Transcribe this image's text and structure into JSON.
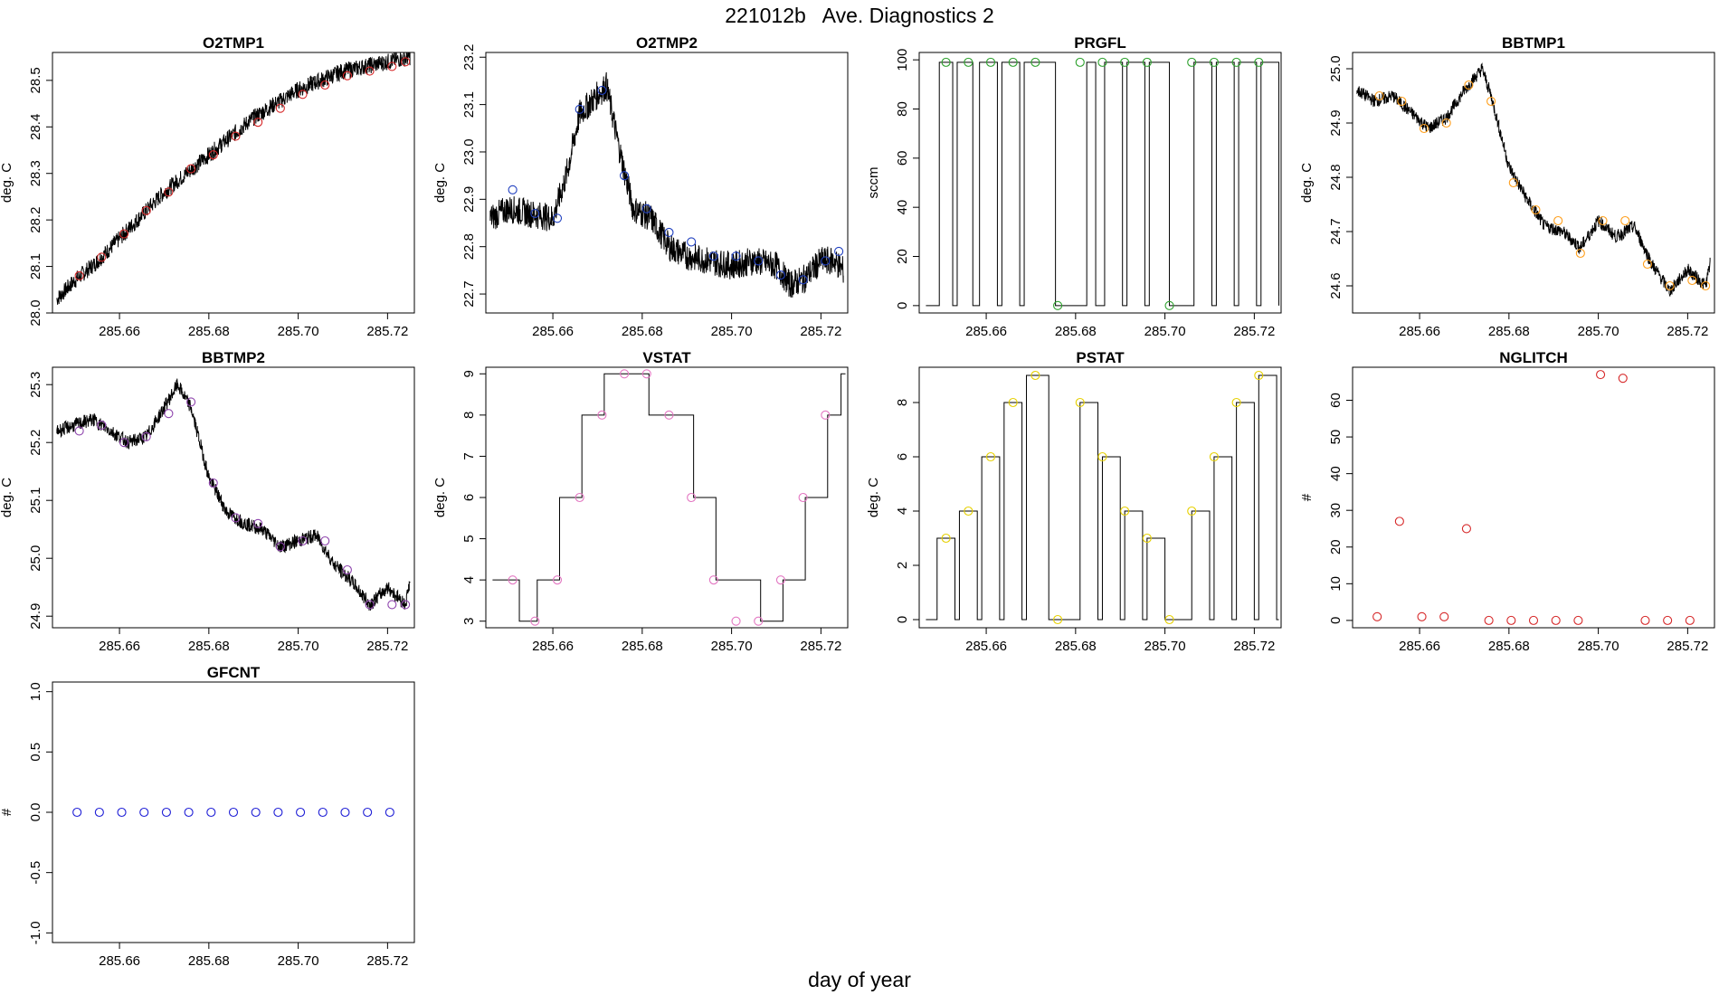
{
  "figure": {
    "title": "221012b   Ave. Diagnostics 2",
    "xlabel": "day of year"
  },
  "chart_data": [
    {
      "type": "line",
      "title": "O2TMP1",
      "ylabel": "deg. C",
      "xlim": [
        285.645,
        285.726
      ],
      "ylim": [
        28.0,
        28.56
      ],
      "xticks": [
        285.66,
        285.68,
        285.7,
        285.72
      ],
      "xtick_labels": [
        "285.66",
        "285.68",
        "285.70",
        "285.72"
      ],
      "yticks": [
        28.0,
        28.1,
        28.2,
        28.3,
        28.4,
        28.5
      ],
      "ytick_labels": [
        "28.0",
        "28.1",
        "28.2",
        "28.3",
        "28.4",
        "28.5"
      ],
      "line_x": [
        285.646,
        285.65,
        285.655,
        285.66,
        285.665,
        285.67,
        285.675,
        285.68,
        285.685,
        285.69,
        285.695,
        285.7,
        285.705,
        285.71,
        285.715,
        285.72,
        285.725
      ],
      "line_y": [
        28.03,
        28.07,
        28.11,
        28.16,
        28.21,
        28.26,
        28.3,
        28.34,
        28.38,
        28.42,
        28.45,
        28.48,
        28.5,
        28.52,
        28.53,
        28.54,
        28.55
      ],
      "line_noise": 0.018,
      "marker_color": "#d62728",
      "marker_x": [
        285.651,
        285.656,
        285.661,
        285.666,
        285.671,
        285.676,
        285.681,
        285.686,
        285.691,
        285.696,
        285.701,
        285.706,
        285.711,
        285.716,
        285.721,
        285.724
      ],
      "marker_y": [
        28.08,
        28.12,
        28.17,
        28.22,
        28.26,
        28.31,
        28.34,
        28.38,
        28.41,
        28.44,
        28.47,
        28.49,
        28.51,
        28.52,
        28.53,
        28.54
      ]
    },
    {
      "type": "line",
      "title": "O2TMP2",
      "ylabel": "deg. C",
      "xlim": [
        285.645,
        285.726
      ],
      "ylim": [
        22.66,
        23.21
      ],
      "xticks": [
        285.66,
        285.68,
        285.7,
        285.72
      ],
      "xtick_labels": [
        "285.66",
        "285.68",
        "285.70",
        "285.72"
      ],
      "yticks": [
        22.7,
        22.8,
        22.9,
        23.0,
        23.1,
        23.2
      ],
      "ytick_labels": [
        "22.7",
        "22.8",
        "22.9",
        "23.0",
        "23.1",
        "23.2"
      ],
      "line_x": [
        285.646,
        285.65,
        285.655,
        285.66,
        285.663,
        285.666,
        285.67,
        285.672,
        285.675,
        285.678,
        285.682,
        285.686,
        285.69,
        285.695,
        285.7,
        285.705,
        285.71,
        285.713,
        285.716,
        285.72,
        285.723,
        285.725
      ],
      "line_y": [
        22.86,
        22.88,
        22.87,
        22.86,
        22.95,
        23.08,
        23.12,
        23.14,
        23.0,
        22.88,
        22.86,
        22.8,
        22.78,
        22.77,
        22.76,
        22.77,
        22.76,
        22.72,
        22.73,
        22.77,
        22.77,
        22.75
      ],
      "line_noise": 0.03,
      "marker_color": "#1f3fbf",
      "marker_x": [
        285.651,
        285.656,
        285.661,
        285.666,
        285.671,
        285.676,
        285.681,
        285.686,
        285.691,
        285.696,
        285.701,
        285.706,
        285.711,
        285.716,
        285.721,
        285.724
      ],
      "marker_y": [
        22.92,
        22.87,
        22.86,
        23.09,
        23.13,
        22.95,
        22.88,
        22.83,
        22.81,
        22.78,
        22.78,
        22.77,
        22.74,
        22.73,
        22.77,
        22.79
      ]
    },
    {
      "type": "line",
      "title": "PRGFL",
      "ylabel": "sccm",
      "xlim": [
        285.645,
        285.726
      ],
      "ylim": [
        -3,
        103
      ],
      "xticks": [
        285.66,
        285.68,
        285.7,
        285.72
      ],
      "xtick_labels": [
        "285.66",
        "285.68",
        "285.70",
        "285.72"
      ],
      "yticks": [
        0,
        20,
        40,
        60,
        80,
        100
      ],
      "ytick_labels": [
        "0",
        "20",
        "40",
        "60",
        "80",
        "100"
      ],
      "pulse_rises": [
        285.6495,
        285.6535,
        285.6585,
        285.6635,
        285.6685,
        285.6825,
        285.6865,
        285.6915,
        285.6965,
        285.7065,
        285.7115,
        285.7165,
        285.7215
      ],
      "pulse_falls": [
        285.6525,
        285.657,
        285.6625,
        285.6675,
        285.6755,
        285.6845,
        285.6905,
        285.6955,
        285.701,
        285.7105,
        285.7155,
        285.7205,
        285.7255
      ],
      "pulse_start": 285.6465,
      "pulse_end": 285.7255,
      "pulse_high": 99,
      "pulse_low": 0,
      "marker_color": "#2ca02c",
      "marker_x": [
        285.651,
        285.656,
        285.661,
        285.666,
        285.671,
        285.676,
        285.681,
        285.686,
        285.691,
        285.696,
        285.701,
        285.706,
        285.711,
        285.716,
        285.721
      ],
      "marker_y": [
        99,
        99,
        99,
        99,
        99,
        0,
        99,
        99,
        99,
        99,
        0,
        99,
        99,
        99,
        99
      ]
    },
    {
      "type": "line",
      "title": "BBTMP1",
      "ylabel": "deg. C",
      "xlim": [
        285.645,
        285.726
      ],
      "ylim": [
        24.55,
        25.03
      ],
      "xticks": [
        285.66,
        285.68,
        285.7,
        285.72
      ],
      "xtick_labels": [
        "285.66",
        "285.68",
        "285.70",
        "285.72"
      ],
      "yticks": [
        24.6,
        24.7,
        24.8,
        24.9,
        25.0
      ],
      "ytick_labels": [
        "24.6",
        "24.7",
        "24.8",
        "24.9",
        "25.0"
      ],
      "line_x": [
        285.646,
        285.65,
        285.654,
        285.658,
        285.662,
        285.666,
        285.67,
        285.674,
        285.676,
        285.68,
        285.684,
        285.688,
        285.692,
        285.696,
        285.7,
        285.704,
        285.708,
        285.712,
        285.716,
        285.72,
        285.724,
        285.725
      ],
      "line_y": [
        24.96,
        24.94,
        24.95,
        24.92,
        24.89,
        24.91,
        24.96,
        25.0,
        24.95,
        24.82,
        24.76,
        24.71,
        24.7,
        24.67,
        24.72,
        24.69,
        24.71,
        24.64,
        24.59,
        24.63,
        24.6,
        24.64
      ],
      "line_noise": 0.012,
      "marker_color": "#ff9f1c",
      "marker_x": [
        285.651,
        285.656,
        285.661,
        285.666,
        285.671,
        285.676,
        285.681,
        285.686,
        285.691,
        285.696,
        285.701,
        285.706,
        285.711,
        285.716,
        285.721,
        285.724
      ],
      "marker_y": [
        24.95,
        24.94,
        24.89,
        24.9,
        24.97,
        24.94,
        24.79,
        24.74,
        24.72,
        24.66,
        24.72,
        24.72,
        24.64,
        24.6,
        24.61,
        24.6
      ]
    },
    {
      "type": "line",
      "title": "BBTMP2",
      "ylabel": "deg. C",
      "xlim": [
        285.645,
        285.726
      ],
      "ylim": [
        24.88,
        25.33
      ],
      "xticks": [
        285.66,
        285.68,
        285.7,
        285.72
      ],
      "xtick_labels": [
        "285.66",
        "285.68",
        "285.70",
        "285.72"
      ],
      "yticks": [
        24.9,
        25.0,
        25.1,
        25.2,
        25.3
      ],
      "ytick_labels": [
        "24.9",
        "25.0",
        "25.1",
        "25.2",
        "25.3"
      ],
      "line_x": [
        285.646,
        285.65,
        285.654,
        285.658,
        285.662,
        285.666,
        285.67,
        285.673,
        285.676,
        285.68,
        285.684,
        285.688,
        285.692,
        285.696,
        285.7,
        285.704,
        285.708,
        285.712,
        285.716,
        285.72,
        285.724,
        285.725
      ],
      "line_y": [
        25.22,
        25.23,
        25.24,
        25.22,
        25.2,
        25.21,
        25.26,
        25.3,
        25.26,
        25.14,
        25.08,
        25.06,
        25.05,
        25.02,
        25.03,
        25.04,
        24.99,
        24.96,
        24.92,
        24.95,
        24.92,
        24.96
      ],
      "line_noise": 0.012,
      "marker_color": "#8e44ad",
      "marker_x": [
        285.651,
        285.656,
        285.661,
        285.666,
        285.671,
        285.676,
        285.681,
        285.686,
        285.691,
        285.696,
        285.701,
        285.706,
        285.711,
        285.716,
        285.721,
        285.724
      ],
      "marker_y": [
        25.22,
        25.23,
        25.2,
        25.21,
        25.25,
        25.27,
        25.13,
        25.07,
        25.06,
        25.02,
        25.03,
        25.03,
        24.98,
        24.92,
        24.92,
        24.92
      ]
    },
    {
      "type": "line",
      "title": "VSTAT",
      "ylabel": "deg. C",
      "xlim": [
        285.645,
        285.726
      ],
      "ylim": [
        2.84,
        9.16
      ],
      "xticks": [
        285.66,
        285.68,
        285.7,
        285.72
      ],
      "xtick_labels": [
        "285.66",
        "285.68",
        "285.70",
        "285.72"
      ],
      "yticks": [
        3,
        4,
        5,
        6,
        7,
        8,
        9
      ],
      "ytick_labels": [
        "3",
        "4",
        "5",
        "6",
        "7",
        "8",
        "9"
      ],
      "step_x": [
        285.6465,
        285.6525,
        285.6565,
        285.6615,
        285.6665,
        285.6715,
        285.6815,
        285.6865,
        285.6915,
        285.6965,
        285.7065,
        285.7115,
        285.7165,
        285.7215,
        285.7245,
        285.7255
      ],
      "step_y": [
        4,
        3,
        4,
        6,
        8,
        9,
        8,
        8,
        6,
        4,
        3,
        4,
        6,
        8,
        9,
        9
      ],
      "marker_color": "#e377c2",
      "marker_x": [
        285.651,
        285.656,
        285.661,
        285.666,
        285.671,
        285.676,
        285.681,
        285.686,
        285.691,
        285.696,
        285.701,
        285.706,
        285.711,
        285.716,
        285.721
      ],
      "marker_y": [
        4,
        3,
        4,
        6,
        8,
        9,
        9,
        8,
        6,
        4,
        3,
        3,
        4,
        6,
        8
      ]
    },
    {
      "type": "line",
      "title": "PSTAT",
      "ylabel": "deg. C",
      "xlim": [
        285.645,
        285.726
      ],
      "ylim": [
        -0.3,
        9.3
      ],
      "xticks": [
        285.66,
        285.68,
        285.7,
        285.72
      ],
      "xtick_labels": [
        "285.66",
        "285.68",
        "285.70",
        "285.72"
      ],
      "yticks": [
        0,
        2,
        4,
        6,
        8
      ],
      "ytick_labels": [
        "0",
        "2",
        "4",
        "6",
        "8"
      ],
      "pulse_rises": [
        285.649,
        285.654,
        285.659,
        285.664,
        285.669,
        285.681,
        285.686,
        285.691,
        285.696,
        285.706,
        285.711,
        285.716,
        285.721
      ],
      "pulse_falls": [
        285.653,
        285.658,
        285.663,
        285.668,
        285.674,
        285.685,
        285.69,
        285.695,
        285.7,
        285.71,
        285.715,
        285.72,
        285.725
      ],
      "pulse_levels": [
        3,
        4,
        6,
        8,
        9,
        8,
        6,
        4,
        3,
        4,
        6,
        8,
        9
      ],
      "pulse_start": 285.6465,
      "pulse_end": 285.7255,
      "pulse_low": 0,
      "marker_color": "#e6d000",
      "marker_x": [
        285.651,
        285.656,
        285.661,
        285.666,
        285.671,
        285.676,
        285.681,
        285.686,
        285.691,
        285.696,
        285.701,
        285.706,
        285.711,
        285.716,
        285.721
      ],
      "marker_y": [
        3,
        4,
        6,
        8,
        9,
        0,
        8,
        6,
        4,
        3,
        0,
        4,
        6,
        8,
        9
      ]
    },
    {
      "type": "scatter",
      "title": "NGLITCH",
      "ylabel": "#",
      "xlim": [
        285.645,
        285.726
      ],
      "ylim": [
        -2,
        69
      ],
      "xticks": [
        285.66,
        285.68,
        285.7,
        285.72
      ],
      "xtick_labels": [
        "285.66",
        "285.68",
        "285.70",
        "285.72"
      ],
      "yticks": [
        0,
        10,
        20,
        30,
        40,
        50,
        60
      ],
      "ytick_labels": [
        "0",
        "10",
        "20",
        "30",
        "40",
        "50",
        "60"
      ],
      "marker_color": "#d62728",
      "marker_x": [
        285.6505,
        285.6555,
        285.6605,
        285.6655,
        285.6705,
        285.6755,
        285.6805,
        285.6855,
        285.6905,
        285.6955,
        285.7005,
        285.7055,
        285.7105,
        285.7155,
        285.7205
      ],
      "marker_y": [
        1,
        27,
        1,
        1,
        25,
        0,
        0,
        0,
        0,
        0,
        67,
        66,
        0,
        0,
        0
      ]
    },
    {
      "type": "scatter",
      "title": "GFCNT",
      "ylabel": "#",
      "xlim": [
        285.645,
        285.726
      ],
      "ylim": [
        -1.08,
        1.08
      ],
      "xticks": [
        285.66,
        285.68,
        285.7,
        285.72
      ],
      "xtick_labels": [
        "285.66",
        "285.68",
        "285.70",
        "285.72"
      ],
      "yticks": [
        -1.0,
        -0.5,
        0.0,
        0.5,
        1.0
      ],
      "ytick_labels": [
        "-1.0",
        "-0.5",
        "0.0",
        "0.5",
        "1.0"
      ],
      "marker_color": "#1f1fd6",
      "marker_x": [
        285.6505,
        285.6555,
        285.6605,
        285.6655,
        285.6705,
        285.6755,
        285.6805,
        285.6855,
        285.6905,
        285.6955,
        285.7005,
        285.7055,
        285.7105,
        285.7155,
        285.7205
      ],
      "marker_y": [
        0,
        0,
        0,
        0,
        0,
        0,
        0,
        0,
        0,
        0,
        0,
        0,
        0,
        0,
        0
      ]
    }
  ]
}
